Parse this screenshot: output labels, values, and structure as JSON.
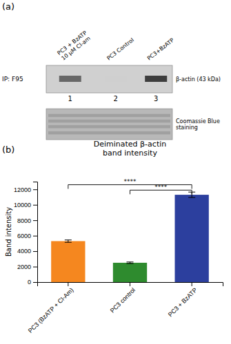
{
  "chart_data": {
    "type": "bar",
    "title": "Deiminated β-actin\nband intensity",
    "y_label": "Band intensity",
    "categories": [
      "PC3 (BzATP + Cl-Am)",
      "PC3 control",
      "PC3 + BzATP"
    ],
    "values": [
      5300,
      2500,
      11300
    ],
    "errors": [
      150,
      100,
      350
    ],
    "colors": [
      "#f5871f",
      "#2e8b2e",
      "#2c3f9e"
    ],
    "ylim": [
      0,
      13000
    ],
    "yticks": [
      0,
      2000,
      4000,
      6000,
      8000,
      10000,
      12000
    ],
    "grid": false,
    "annotations": [
      "(a)",
      "(b)",
      "PC3 + BzATP\n10 µM Cl-am",
      "PC3 Control",
      "PC3+BzATP",
      "IP: F95",
      "β-actin (43 kDa)",
      "1",
      "2",
      "3",
      "Coomassie Blue\nstaining",
      {
        "text": "****",
        "from": "PC3 (BzATP + Cl-Am)",
        "to": "PC3 + BzATP",
        "y": 12600
      },
      {
        "text": "****",
        "from": "PC3 control",
        "to": "PC3 + BzATP",
        "y": 11900
      }
    ]
  }
}
